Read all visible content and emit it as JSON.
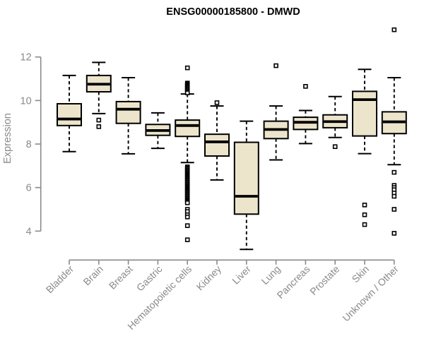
{
  "chart_data": {
    "type": "boxplot",
    "title": "ENSG00000185800 - DMWD",
    "ylabel": "Expression",
    "xlabel": "",
    "yticks": [
      4,
      6,
      8,
      10,
      12
    ],
    "ylim": [
      3.0,
      13.4
    ],
    "grid": false,
    "legend": "none",
    "colors": {
      "box_fill": "#ece5cc",
      "box_stroke": "#000000",
      "axis": "#8a8a8a",
      "label_text": "#8a8a8a",
      "title_text": "#000000",
      "outlier_fill": "#ffffff"
    },
    "categories": [
      "Bladder",
      "Brain",
      "Breast",
      "Gastric",
      "Hematopoietic cells",
      "Kidney",
      "Liver",
      "Lung",
      "Pancreas",
      "Prostate",
      "Skin",
      "Unknown / Other"
    ],
    "boxes": [
      {
        "category": "Bladder",
        "low": 7.65,
        "q1": 8.85,
        "median": 9.15,
        "q3": 9.85,
        "high": 11.15,
        "outliers": []
      },
      {
        "category": "Brain",
        "low": 9.4,
        "q1": 10.4,
        "median": 10.75,
        "q3": 11.15,
        "high": 11.75,
        "outliers": [
          9.1,
          8.8
        ]
      },
      {
        "category": "Breast",
        "low": 7.55,
        "q1": 8.95,
        "median": 9.6,
        "q3": 9.95,
        "high": 11.05,
        "outliers": []
      },
      {
        "category": "Gastric",
        "low": 7.8,
        "q1": 8.4,
        "median": 8.62,
        "q3": 8.9,
        "high": 9.43,
        "outliers": []
      },
      {
        "category": "Hematopoietic cells",
        "low": 7.15,
        "q1": 8.35,
        "median": 8.85,
        "q3": 9.1,
        "high": 10.3,
        "outliers": [
          11.5,
          10.8,
          10.75,
          10.7,
          10.65,
          10.6,
          10.55,
          10.5,
          10.45,
          10.4,
          10.35,
          6.95,
          6.9,
          6.85,
          6.8,
          6.75,
          6.7,
          6.65,
          6.6,
          6.55,
          6.5,
          6.45,
          6.4,
          6.35,
          6.3,
          6.25,
          6.2,
          6.15,
          6.1,
          6.05,
          6.0,
          5.95,
          5.9,
          5.85,
          5.8,
          5.75,
          5.7,
          5.65,
          5.6,
          5.55,
          5.5,
          5.45,
          5.4,
          5.35,
          5.3,
          5.0,
          4.9,
          4.75,
          4.65,
          4.25,
          3.6
        ]
      },
      {
        "category": "Kidney",
        "low": 6.35,
        "q1": 7.45,
        "median": 8.1,
        "q3": 8.45,
        "high": 9.75,
        "outliers": [
          9.9
        ]
      },
      {
        "category": "Liver",
        "low": 3.16,
        "q1": 4.78,
        "median": 5.6,
        "q3": 8.08,
        "high": 9.05,
        "outliers": []
      },
      {
        "category": "Lung",
        "low": 7.27,
        "q1": 8.25,
        "median": 8.67,
        "q3": 9.05,
        "high": 9.75,
        "outliers": [
          11.6
        ]
      },
      {
        "category": "Pancreas",
        "low": 8.02,
        "q1": 8.67,
        "median": 9.0,
        "q3": 9.23,
        "high": 9.54,
        "outliers": [
          10.65
        ]
      },
      {
        "category": "Prostate",
        "low": 8.3,
        "q1": 8.75,
        "median": 9.03,
        "q3": 9.34,
        "high": 10.18,
        "outliers": [
          7.88
        ]
      },
      {
        "category": "Skin",
        "low": 7.56,
        "q1": 8.37,
        "median": 10.04,
        "q3": 10.42,
        "high": 11.43,
        "outliers": [
          5.2,
          4.75,
          4.3
        ]
      },
      {
        "category": "Unknown / Other",
        "low": 7.05,
        "q1": 8.48,
        "median": 9.02,
        "q3": 9.48,
        "high": 11.05,
        "outliers": [
          13.25,
          6.7,
          6.1,
          6.0,
          5.9,
          5.75,
          5.6,
          5.0,
          3.9
        ]
      }
    ]
  }
}
